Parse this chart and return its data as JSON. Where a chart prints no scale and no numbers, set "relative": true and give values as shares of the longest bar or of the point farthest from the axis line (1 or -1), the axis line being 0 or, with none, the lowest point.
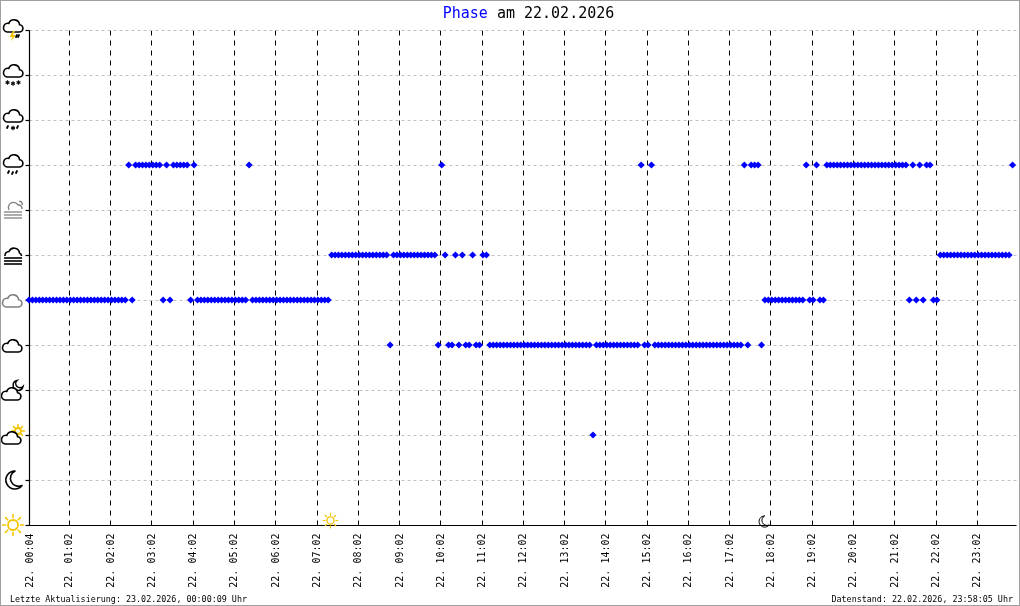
{
  "chart_data": {
    "type": "scatter",
    "title": "Phase am 22.02.2026",
    "annotations": [
      "Letzte Aktualisierung: 23.02.2026, 00:00:09 Uhr",
      "Datenstand: 22.02.2026, 23:58:05 Uhr"
    ],
    "x": [
      "2026-02-22T00:04",
      "2026-02-22T00:09",
      "2026-02-22T00:14",
      "2026-02-22T00:19",
      "2026-02-22T00:24",
      "2026-02-22T00:29",
      "2026-02-22T00:34",
      "2026-02-22T00:39",
      "2026-02-22T00:44",
      "2026-02-22T00:49",
      "2026-02-22T00:54",
      "2026-02-22T00:59",
      "2026-02-22T01:04",
      "2026-02-22T01:09",
      "2026-02-22T01:14",
      "2026-02-22T01:19",
      "2026-02-22T01:24",
      "2026-02-22T01:29",
      "2026-02-22T01:34",
      "2026-02-22T01:39",
      "2026-02-22T01:44",
      "2026-02-22T01:49",
      "2026-02-22T01:54",
      "2026-02-22T01:59",
      "2026-02-22T02:04",
      "2026-02-22T02:09",
      "2026-02-22T02:14",
      "2026-02-22T02:19",
      "2026-02-22T02:24",
      "2026-02-22T02:29",
      "2026-02-22T02:34",
      "2026-02-22T02:39",
      "2026-02-22T02:44",
      "2026-02-22T02:49",
      "2026-02-22T02:54",
      "2026-02-22T02:59",
      "2026-02-22T03:04",
      "2026-02-22T03:09",
      "2026-02-22T03:14",
      "2026-02-22T03:19",
      "2026-02-22T03:24",
      "2026-02-22T03:29",
      "2026-02-22T03:34",
      "2026-02-22T03:39",
      "2026-02-22T03:44",
      "2026-02-22T03:49",
      "2026-02-22T03:54",
      "2026-02-22T03:59",
      "2026-02-22T04:04",
      "2026-02-22T04:09",
      "2026-02-22T04:14",
      "2026-02-22T04:19",
      "2026-02-22T04:24",
      "2026-02-22T04:29",
      "2026-02-22T04:34",
      "2026-02-22T04:39",
      "2026-02-22T04:44",
      "2026-02-22T04:49",
      "2026-02-22T04:54",
      "2026-02-22T04:59",
      "2026-02-22T05:04",
      "2026-02-22T05:09",
      "2026-02-22T05:14",
      "2026-02-22T05:19",
      "2026-02-22T05:24",
      "2026-02-22T05:29",
      "2026-02-22T05:34",
      "2026-02-22T05:39",
      "2026-02-22T05:44",
      "2026-02-22T05:49",
      "2026-02-22T05:54",
      "2026-02-22T05:59",
      "2026-02-22T06:04",
      "2026-02-22T06:09",
      "2026-02-22T06:14",
      "2026-02-22T06:19",
      "2026-02-22T06:24",
      "2026-02-22T06:29",
      "2026-02-22T06:34",
      "2026-02-22T06:39",
      "2026-02-22T06:44",
      "2026-02-22T06:49",
      "2026-02-22T06:54",
      "2026-02-22T06:59",
      "2026-02-22T07:04",
      "2026-02-22T07:09",
      "2026-02-22T07:14",
      "2026-02-22T07:19",
      "2026-02-22T07:24",
      "2026-02-22T07:29",
      "2026-02-22T07:34",
      "2026-02-22T07:39",
      "2026-02-22T07:44",
      "2026-02-22T07:49",
      "2026-02-22T07:54",
      "2026-02-22T07:59",
      "2026-02-22T08:04",
      "2026-02-22T08:09",
      "2026-02-22T08:14",
      "2026-02-22T08:19",
      "2026-02-22T08:24",
      "2026-02-22T08:29",
      "2026-02-22T08:34",
      "2026-02-22T08:39",
      "2026-02-22T08:44",
      "2026-02-22T08:49",
      "2026-02-22T08:54",
      "2026-02-22T08:59",
      "2026-02-22T09:04",
      "2026-02-22T09:09",
      "2026-02-22T09:14",
      "2026-02-22T09:19",
      "2026-02-22T09:24",
      "2026-02-22T09:29",
      "2026-02-22T09:34",
      "2026-02-22T09:39",
      "2026-02-22T09:44",
      "2026-02-22T09:49",
      "2026-02-22T09:54",
      "2026-02-22T09:59",
      "2026-02-22T10:04",
      "2026-02-22T10:09",
      "2026-02-22T10:14",
      "2026-02-22T10:19",
      "2026-02-22T10:24",
      "2026-02-22T10:29",
      "2026-02-22T10:34",
      "2026-02-22T10:39",
      "2026-02-22T10:44",
      "2026-02-22T10:49",
      "2026-02-22T10:54",
      "2026-02-22T10:59",
      "2026-02-22T11:04",
      "2026-02-22T11:09",
      "2026-02-22T11:14",
      "2026-02-22T11:19",
      "2026-02-22T11:24",
      "2026-02-22T11:29",
      "2026-02-22T11:34",
      "2026-02-22T11:39",
      "2026-02-22T11:44",
      "2026-02-22T11:49",
      "2026-02-22T11:54",
      "2026-02-22T11:59",
      "2026-02-22T12:04",
      "2026-02-22T12:09",
      "2026-02-22T12:14",
      "2026-02-22T12:19",
      "2026-02-22T12:24",
      "2026-02-22T12:29",
      "2026-02-22T12:34",
      "2026-02-22T12:39",
      "2026-02-22T12:44",
      "2026-02-22T12:49",
      "2026-02-22T12:54",
      "2026-02-22T12:59",
      "2026-02-22T13:04",
      "2026-02-22T13:09",
      "2026-02-22T13:14",
      "2026-02-22T13:19",
      "2026-02-22T13:24",
      "2026-02-22T13:29",
      "2026-02-22T13:34",
      "2026-02-22T13:39",
      "2026-02-22T13:44",
      "2026-02-22T13:49",
      "2026-02-22T13:54",
      "2026-02-22T13:59",
      "2026-02-22T14:04",
      "2026-02-22T14:09",
      "2026-02-22T14:14",
      "2026-02-22T14:19",
      "2026-02-22T14:24",
      "2026-02-22T14:29",
      "2026-02-22T14:34",
      "2026-02-22T14:39",
      "2026-02-22T14:44",
      "2026-02-22T14:49",
      "2026-02-22T14:54",
      "2026-02-22T14:59",
      "2026-02-22T15:04",
      "2026-02-22T15:09",
      "2026-02-22T15:14",
      "2026-02-22T15:19",
      "2026-02-22T15:24",
      "2026-02-22T15:29",
      "2026-02-22T15:34",
      "2026-02-22T15:39",
      "2026-02-22T15:44",
      "2026-02-22T15:49",
      "2026-02-22T15:54",
      "2026-02-22T15:59",
      "2026-02-22T16:04",
      "2026-02-22T16:09",
      "2026-02-22T16:14",
      "2026-02-22T16:19",
      "2026-02-22T16:24",
      "2026-02-22T16:29",
      "2026-02-22T16:34",
      "2026-02-22T16:39",
      "2026-02-22T16:44",
      "2026-02-22T16:49",
      "2026-02-22T16:54",
      "2026-02-22T16:59",
      "2026-02-22T17:04",
      "2026-02-22T17:09",
      "2026-02-22T17:14",
      "2026-02-22T17:19",
      "2026-02-22T17:24",
      "2026-02-22T17:29",
      "2026-02-22T17:34",
      "2026-02-22T17:39",
      "2026-02-22T17:44",
      "2026-02-22T17:49",
      "2026-02-22T17:54",
      "2026-02-22T17:59",
      "2026-02-22T18:04",
      "2026-02-22T18:09",
      "2026-02-22T18:14",
      "2026-02-22T18:19",
      "2026-02-22T18:24",
      "2026-02-22T18:29",
      "2026-02-22T18:34",
      "2026-02-22T18:39",
      "2026-02-22T18:44",
      "2026-02-22T18:49",
      "2026-02-22T18:54",
      "2026-02-22T18:59",
      "2026-02-22T19:04",
      "2026-02-22T19:09",
      "2026-02-22T19:14",
      "2026-02-22T19:19",
      "2026-02-22T19:24",
      "2026-02-22T19:29",
      "2026-02-22T19:34",
      "2026-02-22T19:39",
      "2026-02-22T19:44",
      "2026-02-22T19:49",
      "2026-02-22T19:54",
      "2026-02-22T19:59",
      "2026-02-22T20:04",
      "2026-02-22T20:09",
      "2026-02-22T20:14",
      "2026-02-22T20:19",
      "2026-02-22T20:24",
      "2026-02-22T20:29",
      "2026-02-22T20:34",
      "2026-02-22T20:39",
      "2026-02-22T20:44",
      "2026-02-22T20:49",
      "2026-02-22T20:54",
      "2026-02-22T20:59",
      "2026-02-22T21:04",
      "2026-02-22T21:09",
      "2026-02-22T21:14",
      "2026-02-22T21:19",
      "2026-02-22T21:24",
      "2026-02-22T21:29",
      "2026-02-22T21:34",
      "2026-02-22T21:39",
      "2026-02-22T21:44",
      "2026-02-22T21:49",
      "2026-02-22T21:54",
      "2026-02-22T21:59",
      "2026-02-22T22:04",
      "2026-02-22T22:09",
      "2026-02-22T22:14",
      "2026-02-22T22:19",
      "2026-02-22T22:24",
      "2026-02-22T22:29",
      "2026-02-22T22:34",
      "2026-02-22T22:39",
      "2026-02-22T22:44",
      "2026-02-22T22:49",
      "2026-02-22T22:54",
      "2026-02-22T22:59",
      "2026-02-22T23:04",
      "2026-02-22T23:09",
      "2026-02-22T23:14",
      "2026-02-22T23:19",
      "2026-02-22T23:24",
      "2026-02-22T23:29",
      "2026-02-22T23:34",
      "2026-02-22T23:39",
      "2026-02-22T23:44",
      "2026-02-22T23:49",
      "2026-02-22T23:54"
    ],
    "values": [
      0.625,
      0.625,
      0.625,
      0.625,
      0.625,
      0.625,
      0.625,
      0.625,
      0.625,
      0.625,
      0.625,
      0.625,
      0.625,
      0.625,
      0.625,
      0.625,
      0.625,
      0.625,
      0.625,
      0.625,
      0.625,
      0.625,
      0.625,
      0.625,
      0.625,
      0.625,
      0.625,
      0.625,
      0.625,
      1,
      0.625,
      1,
      1,
      1,
      1,
      1,
      1,
      1,
      1,
      0.625,
      1,
      0.625,
      1,
      1,
      1,
      1,
      1,
      0.625,
      1,
      0.625,
      0.625,
      0.625,
      0.625,
      0.625,
      0.625,
      0.625,
      0.625,
      0.625,
      0.625,
      0.625,
      0.625,
      0.625,
      0.625,
      0.625,
      1,
      0.625,
      0.625,
      0.625,
      0.625,
      0.625,
      0.625,
      0.625,
      0.625,
      0.625,
      0.625,
      0.625,
      0.625,
      0.625,
      0.625,
      0.625,
      0.625,
      0.625,
      0.625,
      0.625,
      0.625,
      0.625,
      0.625,
      0.625,
      0.75,
      0.75,
      0.75,
      0.75,
      0.75,
      0.75,
      0.75,
      0.75,
      0.75,
      0.75,
      0.75,
      0.75,
      0.75,
      0.75,
      0.75,
      0.75,
      0.75,
      0.5,
      0.75,
      0.75,
      0.75,
      0.75,
      0.75,
      0.75,
      0.75,
      0.75,
      0.75,
      0.75,
      0.75,
      0.75,
      0.75,
      0.5,
      1,
      0.75,
      0.5,
      0.5,
      0.75,
      0.5,
      0.75,
      0.5,
      0.5,
      0.75,
      0.5,
      0.5,
      0.75,
      0.75,
      0.5,
      0.5,
      0.5,
      0.5,
      0.5,
      0.5,
      0.5,
      0.5,
      0.5,
      0.5,
      0.5,
      0.5,
      0.5,
      0.5,
      0.5,
      0.5,
      0.5,
      0.5,
      0.5,
      0.5,
      0.5,
      0.5,
      0.5,
      0.5,
      0.5,
      0.5,
      0.5,
      0.5,
      0.5,
      0.5,
      0.25,
      0.5,
      0.5,
      0.5,
      0.5,
      0.5,
      0.5,
      0.5,
      0.5,
      0.5,
      0.5,
      0.5,
      0.5,
      0.5,
      1,
      0.5,
      0.5,
      1,
      0.5,
      0.5,
      0.5,
      0.5,
      0.5,
      0.5,
      0.5,
      0.5,
      0.5,
      0.5,
      0.5,
      0.5,
      0.5,
      0.5,
      0.5,
      0.5,
      0.5,
      0.5,
      0.5,
      0.5,
      0.5,
      0.5,
      0.5,
      0.5,
      0.5,
      0.5,
      1,
      0.5,
      1,
      1,
      1,
      0.5,
      0.625,
      0.625,
      0.625,
      0.625,
      0.625,
      0.625,
      0.625,
      0.625,
      0.625,
      0.625,
      0.625,
      0.625,
      1,
      0.625,
      0.625,
      1,
      0.625,
      0.625,
      1,
      1,
      1,
      1,
      1,
      1,
      1,
      1,
      1,
      1,
      1,
      1,
      1,
      1,
      1,
      1,
      1,
      1,
      1,
      1,
      1,
      1,
      1,
      1,
      0.625,
      1,
      0.625,
      1,
      0.625,
      1,
      1,
      0.625,
      0.625,
      0.75,
      0.75,
      0.75,
      0.75,
      0.75,
      0.75,
      0.75,
      0.75,
      0.75,
      0.75,
      0.75,
      0.75,
      0.75,
      0.75,
      0.75,
      0.75,
      0.75,
      0.75,
      0.75,
      0.75,
      0.75,
      1
    ],
    "relative": true,
    "color": "#0000ff",
    "marker": "diamond",
    "xlim": [
      "2026-02-22T00:04",
      "2026-02-22T23:59"
    ],
    "xticks": [
      {
        "value": "2026-02-22T00:04",
        "label": "22. 00:04"
      },
      {
        "value": "2026-02-22T01:02",
        "label": "22. 01:02"
      },
      {
        "value": "2026-02-22T02:02",
        "label": "22. 02:02"
      },
      {
        "value": "2026-02-22T03:02",
        "label": "22. 03:02"
      },
      {
        "value": "2026-02-22T04:02",
        "label": "22. 04:02"
      },
      {
        "value": "2026-02-22T05:02",
        "label": "22. 05:02"
      },
      {
        "value": "2026-02-22T06:02",
        "label": "22. 06:02"
      },
      {
        "value": "2026-02-22T07:02",
        "label": "22. 07:02"
      },
      {
        "value": "2026-02-22T08:02",
        "label": "22. 08:02"
      },
      {
        "value": "2026-02-22T09:02",
        "label": "22. 09:02"
      },
      {
        "value": "2026-02-22T10:02",
        "label": "22. 10:02"
      },
      {
        "value": "2026-02-22T11:02",
        "label": "22. 11:02"
      },
      {
        "value": "2026-02-22T12:02",
        "label": "22. 12:02"
      },
      {
        "value": "2026-02-22T13:02",
        "label": "22. 13:02"
      },
      {
        "value": "2026-02-22T14:02",
        "label": "22. 14:02"
      },
      {
        "value": "2026-02-22T15:02",
        "label": "22. 15:02"
      },
      {
        "value": "2026-02-22T16:02",
        "label": "22. 16:02"
      },
      {
        "value": "2026-02-22T17:02",
        "label": "22. 17:02"
      },
      {
        "value": "2026-02-22T18:02",
        "label": "22. 18:02"
      },
      {
        "value": "2026-02-22T19:02",
        "label": "22. 19:02"
      },
      {
        "value": "2026-02-22T20:02",
        "label": "22. 20:02"
      },
      {
        "value": "2026-02-22T21:02",
        "label": "22. 21:02"
      },
      {
        "value": "2026-02-22T22:02",
        "label": "22. 22:02"
      },
      {
        "value": "2026-02-22T23:02",
        "label": "22. 23:02"
      }
    ],
    "grid": true,
    "tick_labels": "x"
  }
}
